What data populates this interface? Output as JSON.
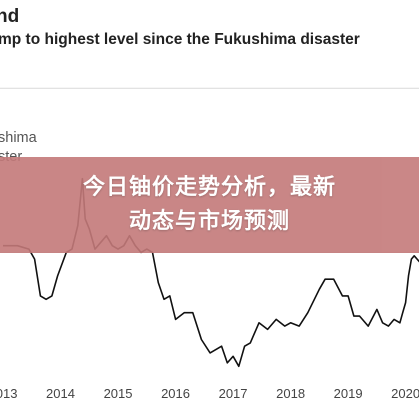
{
  "header": {
    "title_fragment": "nd",
    "subtitle_fragment": "mp to highest level since the Fukushima disaster"
  },
  "annotation": {
    "line1": "shima",
    "line2": "ster"
  },
  "overlay": {
    "line1": "今日铀价走势分析，最新",
    "line2": "动态与市场预测",
    "color": "#c47a7a"
  },
  "chart_data": {
    "type": "line",
    "xlabel": "",
    "ylabel": "",
    "x_ticks": [
      "2013",
      "2014",
      "2015",
      "2016",
      "2017",
      "2018",
      "2019",
      "2020"
    ],
    "xlim": [
      2013.0,
      2020.25
    ],
    "ylim": [
      0,
      100
    ],
    "grid": false,
    "reference_lines": [
      85,
      36
    ],
    "series": [
      {
        "color": "#111111",
        "points": [
          [
            2013.0,
            38
          ],
          [
            2013.25,
            38
          ],
          [
            2013.45,
            37
          ],
          [
            2013.55,
            34
          ],
          [
            2013.65,
            23
          ],
          [
            2013.75,
            22
          ],
          [
            2013.85,
            23
          ],
          [
            2013.95,
            29
          ],
          [
            2014.1,
            36
          ],
          [
            2014.2,
            37
          ],
          [
            2014.3,
            44
          ],
          [
            2014.38,
            58
          ],
          [
            2014.43,
            46
          ],
          [
            2014.5,
            43
          ],
          [
            2014.6,
            37
          ],
          [
            2014.7,
            39
          ],
          [
            2014.8,
            41
          ],
          [
            2014.9,
            38
          ],
          [
            2015.0,
            37
          ],
          [
            2015.1,
            38
          ],
          [
            2015.2,
            41
          ],
          [
            2015.3,
            38
          ],
          [
            2015.4,
            36
          ],
          [
            2015.5,
            37
          ],
          [
            2015.6,
            36
          ],
          [
            2015.7,
            27
          ],
          [
            2015.8,
            22
          ],
          [
            2015.9,
            23
          ],
          [
            2016.0,
            16
          ],
          [
            2016.15,
            18
          ],
          [
            2016.3,
            18
          ],
          [
            2016.45,
            10
          ],
          [
            2016.6,
            6
          ],
          [
            2016.8,
            8
          ],
          [
            2016.9,
            3
          ],
          [
            2017.0,
            5
          ],
          [
            2017.1,
            2
          ],
          [
            2017.2,
            8
          ],
          [
            2017.3,
            9
          ],
          [
            2017.45,
            15
          ],
          [
            2017.6,
            13
          ],
          [
            2017.75,
            16
          ],
          [
            2017.9,
            14
          ],
          [
            2018.0,
            15
          ],
          [
            2018.15,
            14
          ],
          [
            2018.3,
            18
          ],
          [
            2018.5,
            25
          ],
          [
            2018.6,
            28
          ],
          [
            2018.75,
            28
          ],
          [
            2018.9,
            23
          ],
          [
            2019.0,
            23
          ],
          [
            2019.1,
            17
          ],
          [
            2019.2,
            17
          ],
          [
            2019.35,
            14
          ],
          [
            2019.5,
            19
          ],
          [
            2019.6,
            15
          ],
          [
            2019.7,
            14
          ],
          [
            2019.8,
            16
          ],
          [
            2019.9,
            15
          ],
          [
            2019.95,
            18
          ],
          [
            2020.0,
            21
          ],
          [
            2020.05,
            29
          ],
          [
            2020.1,
            34
          ],
          [
            2020.15,
            35
          ],
          [
            2020.2,
            34
          ],
          [
            2020.25,
            33
          ]
        ]
      }
    ]
  }
}
